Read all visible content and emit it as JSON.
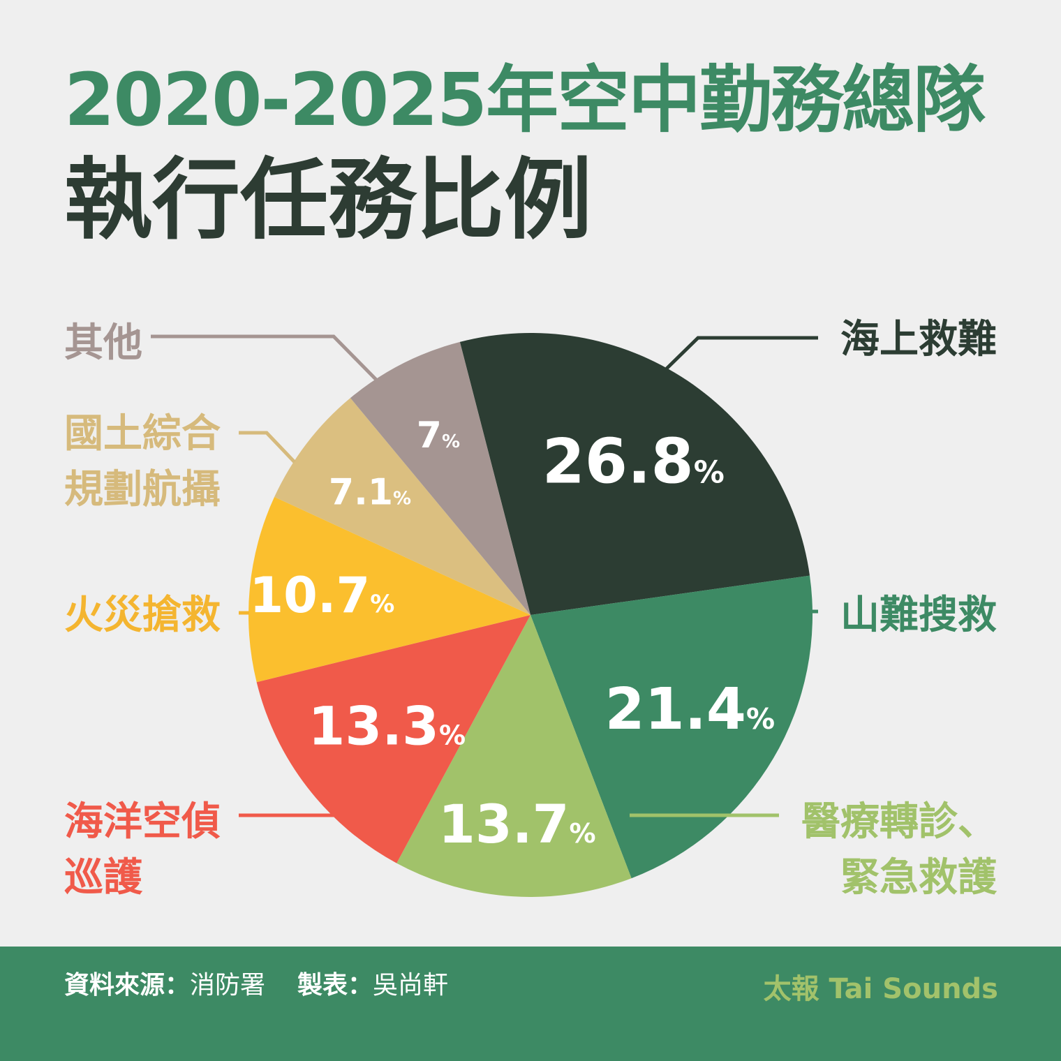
{
  "title": {
    "line1": "2020-2025年空中勤務總隊",
    "line2": "執行任務比例"
  },
  "chart_data": {
    "type": "pie",
    "unit": "%",
    "slices": [
      {
        "label_lines": [
          "海上救難"
        ],
        "value": 26.8,
        "display": "26.8",
        "color": "#2c3d33",
        "label_color": "#2c3d33"
      },
      {
        "label_lines": [
          "山難搜救"
        ],
        "value": 21.4,
        "display": "21.4",
        "color": "#3d8a64",
        "label_color": "#3d8a64"
      },
      {
        "label_lines": [
          "醫療轉診、",
          "緊急救護"
        ],
        "value": 13.7,
        "display": "13.7",
        "color": "#a1c26a",
        "label_color": "#a1c26a"
      },
      {
        "label_lines": [
          "海洋空偵",
          "巡護"
        ],
        "value": 13.3,
        "display": "13.3",
        "color": "#f05a4a",
        "label_color": "#f05a4a"
      },
      {
        "label_lines": [
          "火災搶救"
        ],
        "value": 10.7,
        "display": "10.7",
        "color": "#fbbf2e",
        "label_color": "#f4b530"
      },
      {
        "label_lines": [
          "國土綜合",
          "規劃航攝"
        ],
        "value": 7.1,
        "display": "7.1",
        "color": "#dbbf80",
        "label_color": "#d6ba7c"
      },
      {
        "label_lines": [
          "其他"
        ],
        "value": 7.0,
        "display": "7",
        "color": "#a59592",
        "label_color": "#a59592"
      }
    ]
  },
  "footer": {
    "source_label": "資料來源：",
    "source_value": "消防署",
    "author_label": "製表：",
    "author_value": "吳尚軒",
    "brand": "太報 Tai Sounds"
  }
}
